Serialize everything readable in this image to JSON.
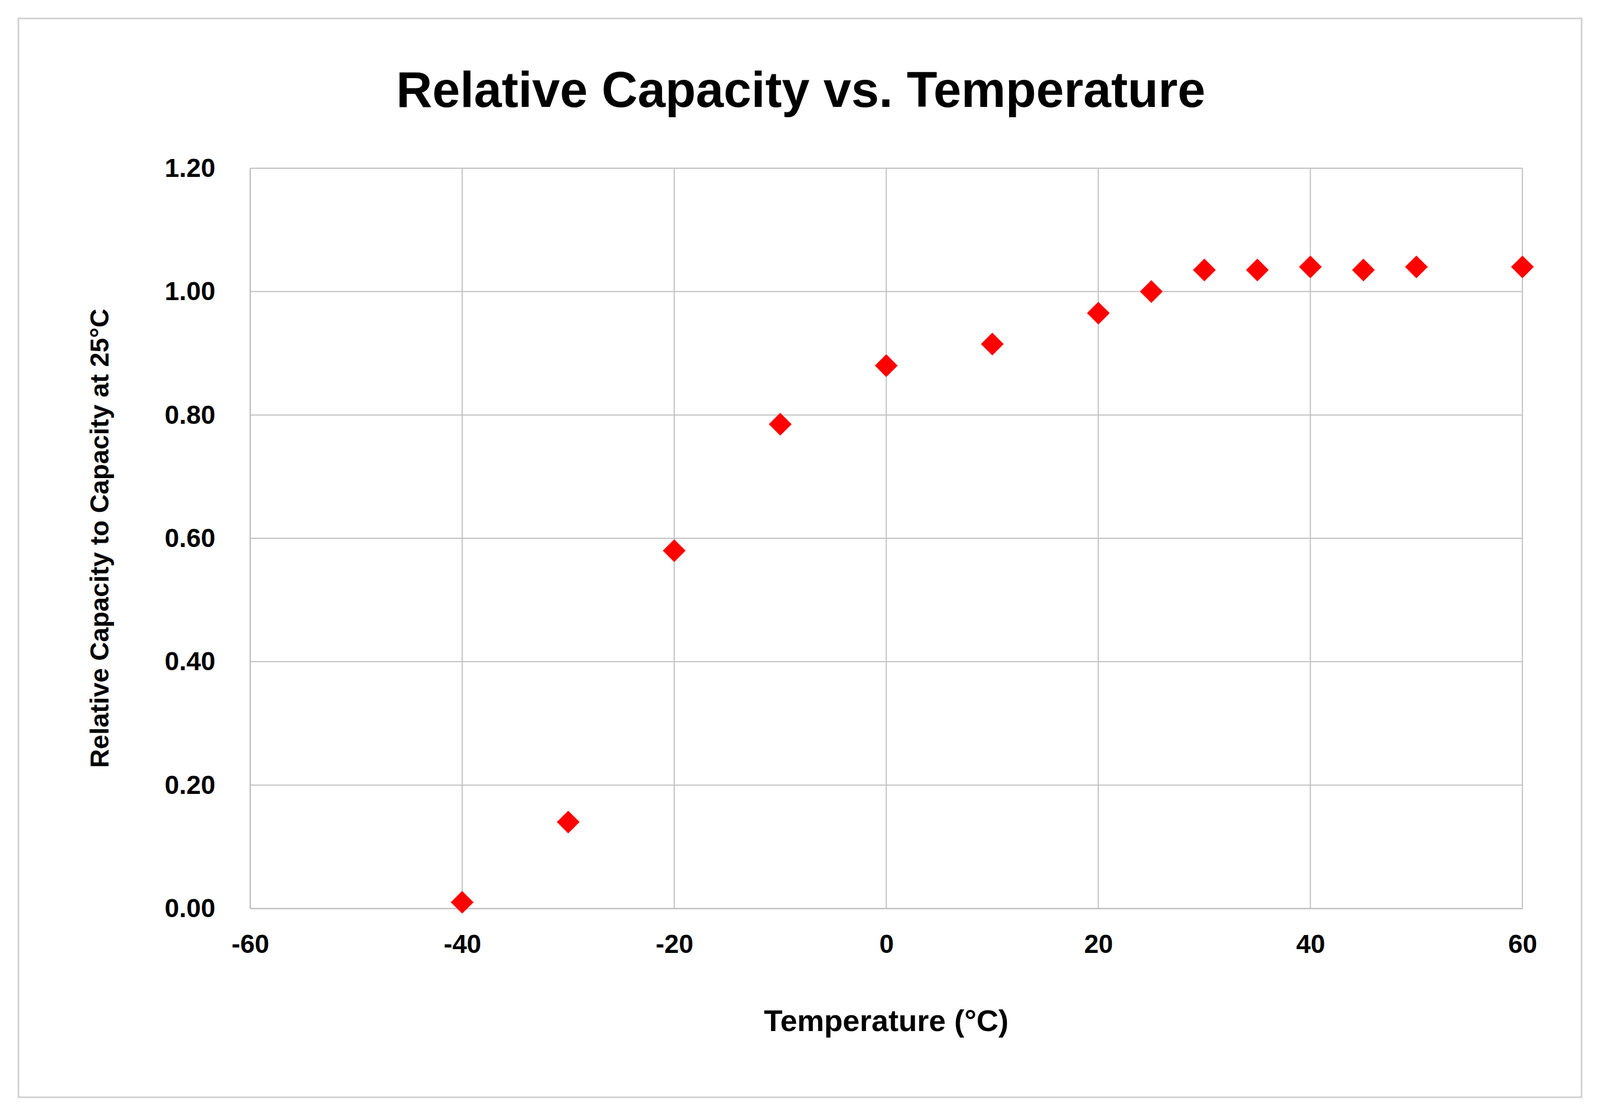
{
  "chart_data": {
    "type": "scatter",
    "title": "Relative Capacity vs. Temperature",
    "x_label": "Temperature (°C)",
    "y_label": "Relative Capacity to Capacity at 25°C",
    "x": [
      -40,
      -30,
      -20,
      -10,
      0,
      10,
      20,
      25,
      30,
      35,
      40,
      45,
      50,
      60
    ],
    "values": [
      0.01,
      0.14,
      0.58,
      0.785,
      0.88,
      0.915,
      0.965,
      1.0,
      1.035,
      1.035,
      1.04,
      1.035,
      1.04,
      1.04
    ],
    "color": "#ff0000",
    "marker": "diamond",
    "xlim": [
      -60,
      60
    ],
    "xticks": [
      -60,
      -40,
      -20,
      0,
      20,
      40,
      60
    ],
    "ylim": [
      0,
      1.2
    ],
    "yticks": [
      {
        "value": 0,
        "label": "0.00"
      },
      {
        "value": 0.2,
        "label": "0.20"
      },
      {
        "value": 0.4,
        "label": "0.40"
      },
      {
        "value": 0.6,
        "label": "0.60"
      },
      {
        "value": 0.8,
        "label": "0.80"
      },
      {
        "value": 1.0,
        "label": "1.00"
      },
      {
        "value": 1.2,
        "label": "1.20"
      }
    ],
    "grid": true
  }
}
